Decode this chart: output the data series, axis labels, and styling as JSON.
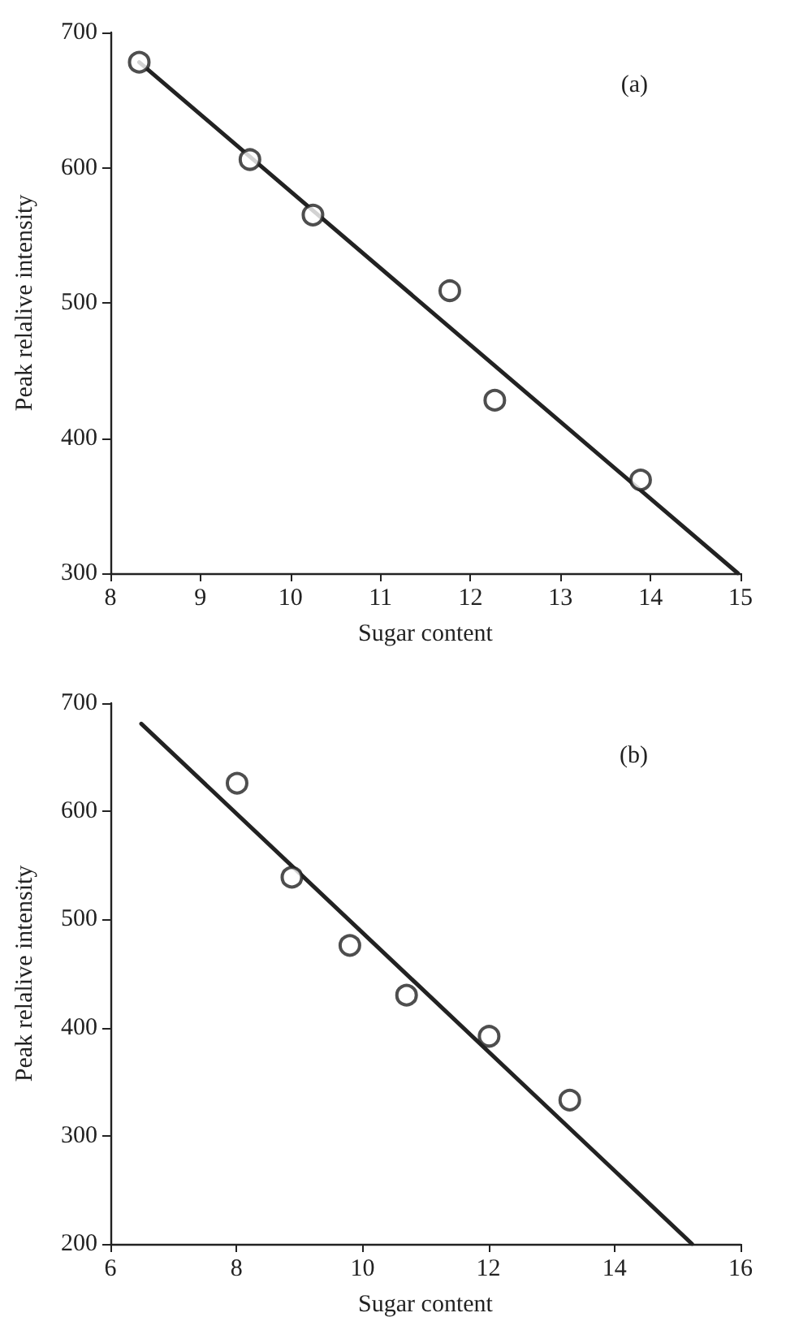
{
  "chart_data": [
    {
      "type": "scatter",
      "xlabel": "Sugar content",
      "ylabel": "Peak relalive intensity",
      "annotations": [
        "(a)"
      ],
      "xlim": [
        8,
        15
      ],
      "ylim": [
        300,
        700
      ],
      "xticks": [
        8,
        9,
        10,
        11,
        12,
        13,
        14,
        15
      ],
      "yticks": [
        300,
        400,
        500,
        600,
        700
      ],
      "grid": false,
      "series": [
        {
          "marker": "circle",
          "color": "#222222",
          "x": [
            8.32,
            9.55,
            10.25,
            11.77,
            12.27,
            13.89
          ],
          "values": [
            678,
            606,
            565,
            509,
            428,
            369
          ]
        },
        {
          "type": "line",
          "marker": "none",
          "line_style": "solid",
          "color": "#222222",
          "x": [
            8.32,
            14.97
          ],
          "values": [
            678,
            300
          ]
        }
      ]
    },
    {
      "type": "scatter",
      "xlabel": "Sugar content",
      "ylabel": "Peak relalive intensity",
      "annotations": [
        "(b)"
      ],
      "xlim": [
        6,
        16
      ],
      "ylim": [
        200,
        700
      ],
      "xticks": [
        6,
        8,
        10,
        12,
        14,
        16
      ],
      "yticks": [
        200,
        300,
        400,
        500,
        600,
        700
      ],
      "grid": false,
      "series": [
        {
          "marker": "circle",
          "color": "#222222",
          "x": [
            8.01,
            8.88,
            9.8,
            10.7,
            12.01,
            13.29
          ],
          "values": [
            626,
            539,
            476,
            430,
            392,
            333
          ]
        },
        {
          "type": "line",
          "marker": "none",
          "line_style": "solid",
          "color": "#222222",
          "x": [
            6.49,
            15.23
          ],
          "values": [
            681,
            200
          ]
        }
      ]
    }
  ]
}
